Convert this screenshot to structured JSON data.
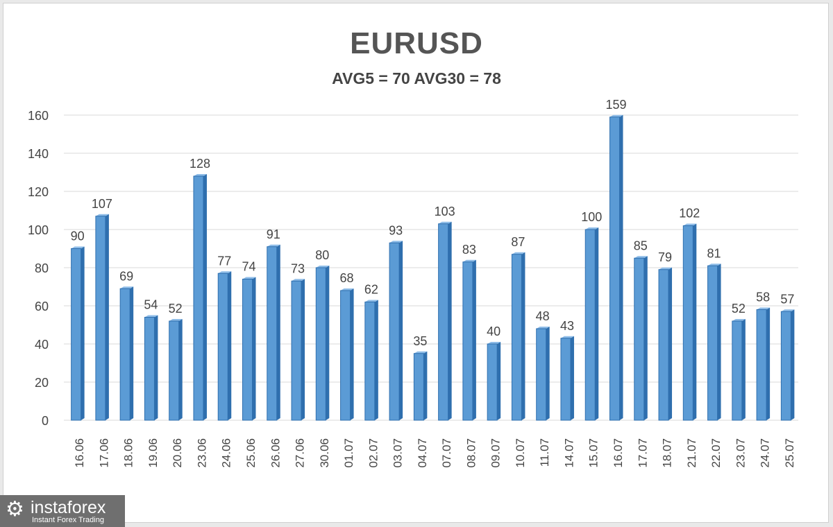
{
  "title": "EURUSD",
  "subtitle": "AVG5 = 70 AVG30 = 78",
  "colors": {
    "bar": "#5b9bd5",
    "bar_dark": "#2f6fae",
    "grid": "#d9d9d9",
    "text": "#444444"
  },
  "brand": {
    "name": "instaforex",
    "tagline": "Instant Forex Trading",
    "icon": "gear-icon"
  },
  "chart_data": {
    "type": "bar",
    "title": "EURUSD",
    "subtitle": "AVG5 = 70 AVG30 = 78",
    "categories": [
      "16.06",
      "17.06",
      "18.06",
      "19.06",
      "20.06",
      "23.06",
      "24.06",
      "25.06",
      "26.06",
      "27.06",
      "30.06",
      "01.07",
      "02.07",
      "03.07",
      "04.07",
      "07.07",
      "08.07",
      "09.07",
      "10.07",
      "11.07",
      "14.07",
      "15.07",
      "16.07",
      "17.07",
      "18.07",
      "21.07",
      "22.07",
      "23.07",
      "24.07",
      "25.07"
    ],
    "values": [
      90,
      107,
      69,
      54,
      52,
      128,
      77,
      74,
      91,
      73,
      80,
      68,
      62,
      93,
      35,
      103,
      83,
      40,
      87,
      48,
      43,
      100,
      159,
      85,
      79,
      102,
      81,
      52,
      58,
      57
    ],
    "ylim": [
      0,
      160
    ],
    "yticks": [
      0,
      20,
      40,
      60,
      80,
      100,
      120,
      140,
      160
    ],
    "grid": true,
    "data_labels": true,
    "legend": "none"
  }
}
